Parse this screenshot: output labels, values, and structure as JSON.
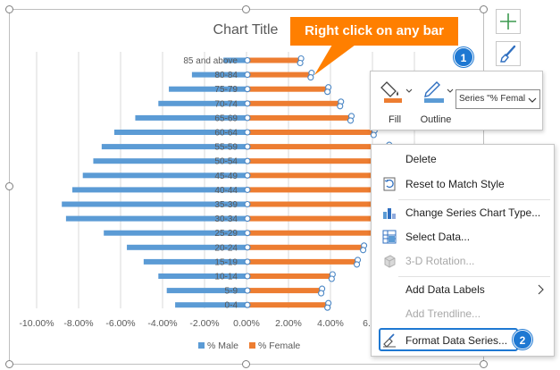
{
  "chart_data": {
    "type": "bar",
    "orientation": "horizontal",
    "title": "Chart Title",
    "categories": [
      "0-4",
      "5-9",
      "10-14",
      "15-19",
      "20-24",
      "25-29",
      "30-34",
      "35-39",
      "40-44",
      "45-49",
      "50-54",
      "55-59",
      "60-64",
      "65-69",
      "70-74",
      "75-79",
      "80-84",
      "85 and above"
    ],
    "series": [
      {
        "name": "% Male",
        "color": "#5b9bd5",
        "values": [
          -3.4,
          -3.8,
          -4.2,
          -4.9,
          -5.7,
          -6.8,
          -8.6,
          -8.8,
          -8.3,
          -7.8,
          -7.3,
          -6.9,
          -6.3,
          -5.3,
          -4.2,
          -3.7,
          -2.6,
          -1.1
        ]
      },
      {
        "name": "% Female",
        "color": "#ed7d31",
        "values": [
          3.9,
          3.6,
          4.1,
          5.3,
          5.6,
          6.5,
          7.9,
          8.2,
          7.8,
          7.4,
          7.1,
          6.8,
          6.1,
          5.0,
          4.5,
          3.9,
          3.1,
          2.6
        ]
      }
    ],
    "xlim": [
      -10,
      10
    ],
    "x_ticks": [
      "-10.00%",
      "-8.00%",
      "-6.00%",
      "-4.00%",
      "-2.00%",
      "0.00%",
      "2.00%",
      "4.00%",
      "6.00%"
    ],
    "grid": true,
    "legend": "bottom",
    "selected_series": "% Female"
  },
  "callout": {
    "text": "Right click on any bar"
  },
  "badges": {
    "one": "1",
    "two": "2"
  },
  "side_buttons": [
    {
      "icon": "plus-icon"
    },
    {
      "icon": "brush-icon"
    }
  ],
  "toolbar": {
    "fill_label": "Fill",
    "outline_label": "Outline",
    "series_value": "Series \"% Femal",
    "fill_color": "#ed7d31"
  },
  "context_menu": {
    "items": [
      {
        "label": "Delete",
        "icon": "",
        "disabled": false
      },
      {
        "label": "Reset to Match Style",
        "icon": "reset-style-icon",
        "disabled": false
      },
      {
        "label": "Change Series Chart Type...",
        "icon": "chart-type-icon",
        "disabled": false
      },
      {
        "label": "Select Data...",
        "icon": "select-data-icon",
        "disabled": false
      },
      {
        "label": "3-D Rotation...",
        "icon": "rotation-icon",
        "disabled": true
      },
      {
        "label": "Add Data Labels",
        "icon": "",
        "disabled": false
      },
      {
        "label": "Add Trendline...",
        "icon": "",
        "disabled": true
      },
      {
        "label": "Format Data Series...",
        "icon": "format-series-icon",
        "disabled": false
      }
    ]
  }
}
